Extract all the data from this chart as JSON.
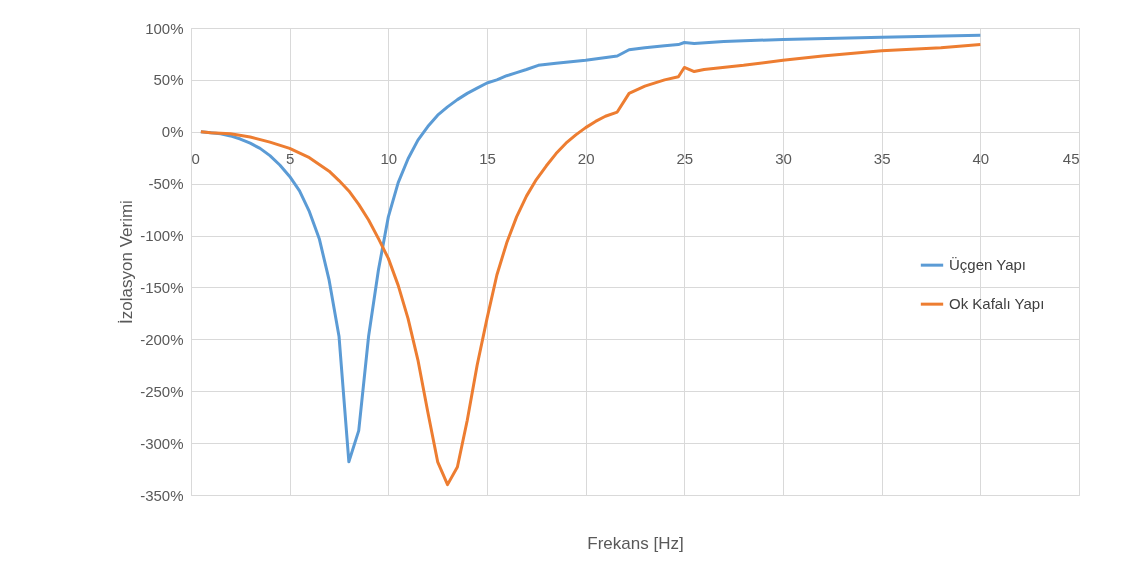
{
  "chart_data": {
    "type": "line",
    "xlabel": "Frekans [Hz]",
    "ylabel": "İzolasyon Verimi",
    "xlim": [
      0,
      45
    ],
    "xticks": [
      0,
      5,
      10,
      15,
      20,
      25,
      30,
      35,
      40,
      45
    ],
    "ylim": [
      -350,
      100
    ],
    "yticks": [
      {
        "value": 100,
        "label": "100%"
      },
      {
        "value": 50,
        "label": "50%"
      },
      {
        "value": 0,
        "label": "0%"
      },
      {
        "value": -50,
        "label": "-50%"
      },
      {
        "value": -100,
        "label": "-100%"
      },
      {
        "value": -150,
        "label": "-150%"
      },
      {
        "value": -200,
        "label": "-200%"
      },
      {
        "value": -250,
        "label": "-250%"
      },
      {
        "value": -300,
        "label": "-300%"
      },
      {
        "value": -350,
        "label": "-350%"
      }
    ],
    "grid": true,
    "legend": "right",
    "marker": "none",
    "line_style": "solid",
    "series": [
      {
        "name": "Üçgen Yapı",
        "color": "#5b9bd5",
        "x": [
          0.5,
          1,
          1.5,
          2,
          2.5,
          3,
          3.5,
          4,
          4.5,
          5,
          5.5,
          6,
          6.5,
          7,
          7.5,
          8,
          8.5,
          9,
          9.5,
          10,
          10.5,
          11,
          11.5,
          12,
          12.5,
          13,
          13.5,
          14,
          14.5,
          15,
          15.5,
          16,
          16.5,
          17,
          17.6,
          18.5,
          20,
          21.6,
          22.2,
          23,
          24,
          24.7,
          25,
          25.5,
          27,
          30,
          35,
          40
        ],
        "values": [
          0,
          -1,
          -2,
          -4,
          -7,
          -11,
          -16,
          -23,
          -32,
          -43,
          -57,
          -77,
          -103,
          -143,
          -197,
          -318,
          -288,
          -197,
          -133,
          -82,
          -49,
          -26,
          -8,
          5,
          16,
          24,
          31,
          37,
          42,
          47,
          50,
          54,
          57,
          60,
          64,
          66,
          69,
          73,
          79,
          81,
          83,
          84,
          86,
          85,
          87,
          89,
          91,
          93
        ]
      },
      {
        "name": "Ok Kafalı Yapı",
        "color": "#ed7d31",
        "x": [
          0.5,
          1,
          2,
          3,
          4,
          5,
          6,
          7,
          7.5,
          8,
          8.5,
          9,
          9.5,
          10,
          10.5,
          11,
          11.5,
          12,
          12.5,
          13,
          13.5,
          14,
          14.5,
          15,
          15.5,
          16,
          16.5,
          17,
          17.5,
          18,
          18.5,
          19,
          19.5,
          20,
          20.5,
          21,
          21.6,
          22.2,
          23,
          24,
          24.7,
          25,
          25.5,
          26,
          28,
          30,
          32,
          35,
          38,
          40
        ],
        "values": [
          0,
          -1,
          -2,
          -5,
          -10,
          -16,
          -25,
          -38,
          -47,
          -57,
          -70,
          -85,
          -103,
          -122,
          -148,
          -180,
          -220,
          -270,
          -318,
          -340,
          -323,
          -278,
          -225,
          -180,
          -138,
          -107,
          -82,
          -62,
          -46,
          -33,
          -21,
          -11,
          -3,
          4,
          10,
          15,
          19,
          37,
          44,
          50,
          53,
          62,
          58,
          60,
          64,
          69,
          73,
          78,
          81,
          84
        ]
      }
    ]
  }
}
